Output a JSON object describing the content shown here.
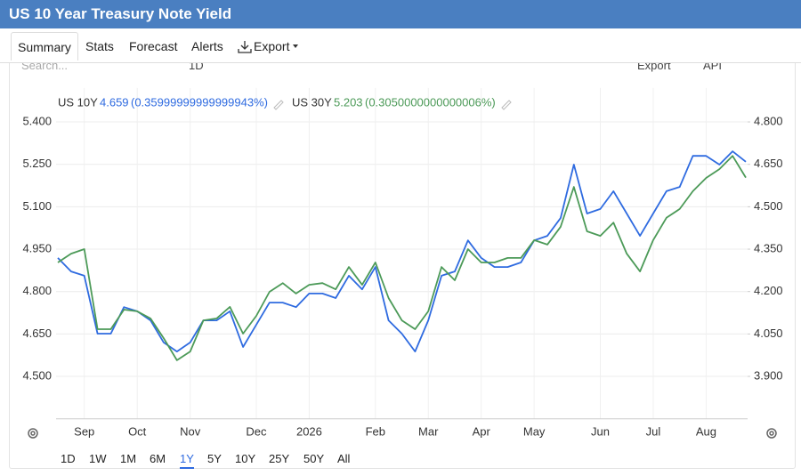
{
  "header": {
    "title": "US 10 Year Treasury Note Yield"
  },
  "tabs": [
    "Summary",
    "Stats",
    "Forecast",
    "Alerts",
    "Export"
  ],
  "selected_tab": 0,
  "toolbar": [
    "Search...",
    "1D",
    "Export",
    "API"
  ],
  "ranges": [
    "1D",
    "1W",
    "1M",
    "6M",
    "1Y",
    "5Y",
    "10Y",
    "25Y",
    "50Y",
    "All"
  ],
  "selected_range": 4,
  "chart_data": {
    "type": "line",
    "categories": [
      null,
      null,
      "Sep",
      null,
      null,
      null,
      "Oct",
      null,
      null,
      null,
      "Nov",
      null,
      null,
      null,
      null,
      "Dec",
      null,
      null,
      null,
      "2026",
      null,
      null,
      null,
      null,
      "Feb",
      null,
      null,
      null,
      "Mar",
      null,
      null,
      null,
      "Apr",
      null,
      null,
      null,
      "May",
      null,
      null,
      null,
      null,
      "Jun",
      null,
      null,
      null,
      "Jul",
      null,
      null,
      null,
      "Aug",
      null,
      null,
      null
    ],
    "series": [
      {
        "name": "US 10Y",
        "last_label": "4.659",
        "change_label": "(0.35999999999999943%)",
        "color": "#2f6be0",
        "axis": "y2",
        "values": [
          4.319,
          4.271,
          4.256,
          4.051,
          4.051,
          4.145,
          4.13,
          4.098,
          4.02,
          3.988,
          4.02,
          4.098,
          4.098,
          4.13,
          4.004,
          4.083,
          4.161,
          4.161,
          4.145,
          4.193,
          4.193,
          4.177,
          4.256,
          4.208,
          4.287,
          4.098,
          4.051,
          3.988,
          4.098,
          4.256,
          4.271,
          4.381,
          4.319,
          4.287,
          4.287,
          4.303,
          4.381,
          4.397,
          4.46,
          4.649,
          4.476,
          4.492,
          4.555,
          4.476,
          4.397,
          4.476,
          4.555,
          4.57,
          4.68,
          4.68,
          4.649,
          4.696,
          4.659
        ]
      },
      {
        "name": "US 30Y",
        "last_label": "5.203",
        "change_label": "(0.3050000000000006%)",
        "color": "#4c9a58",
        "axis": "y",
        "values": [
          4.903,
          4.934,
          4.95,
          4.667,
          4.667,
          4.736,
          4.73,
          4.705,
          4.635,
          4.557,
          4.588,
          4.698,
          4.705,
          4.746,
          4.651,
          4.714,
          4.799,
          4.83,
          4.793,
          4.824,
          4.83,
          4.808,
          4.887,
          4.824,
          4.903,
          4.777,
          4.698,
          4.667,
          4.73,
          4.887,
          4.84,
          4.95,
          4.903,
          4.903,
          4.919,
          4.919,
          4.982,
          4.966,
          5.029,
          5.17,
          5.013,
          4.997,
          5.044,
          4.934,
          4.871,
          4.982,
          5.061,
          5.092,
          5.155,
          5.202,
          5.233,
          5.28,
          5.203
        ]
      }
    ],
    "ylim": [
      4.35,
      5.52
    ],
    "yticks": [
      {
        "value": 4.5,
        "label": "4.500"
      },
      {
        "value": 4.65,
        "label": "4.650"
      },
      {
        "value": 4.8,
        "label": "4.800"
      },
      {
        "value": 4.95,
        "label": "4.950"
      },
      {
        "value": 5.1,
        "label": "5.100"
      },
      {
        "value": 5.25,
        "label": "5.250"
      },
      {
        "value": 5.4,
        "label": "5.400"
      }
    ],
    "y2lim": [
      3.75,
      4.92
    ],
    "y2ticks": [
      {
        "value": 3.9,
        "label": "3.900"
      },
      {
        "value": 4.05,
        "label": "4.050"
      },
      {
        "value": 4.2,
        "label": "4.200"
      },
      {
        "value": 4.35,
        "label": "4.350"
      },
      {
        "value": 4.5,
        "label": "4.500"
      },
      {
        "value": 4.65,
        "label": "4.650"
      },
      {
        "value": 4.8,
        "label": "4.800"
      }
    ],
    "grid": true
  }
}
